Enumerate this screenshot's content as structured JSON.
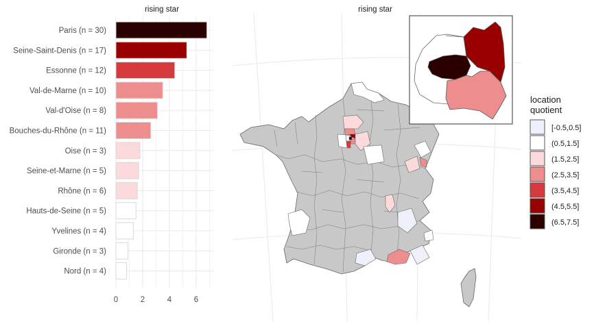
{
  "bar_panel": {
    "title": "rising star",
    "x_ticks": [
      "0",
      "2",
      "4",
      "6"
    ]
  },
  "map_panel": {
    "title": "rising star"
  },
  "legend": {
    "title_line1": "location",
    "title_line2": "quotient",
    "items": [
      {
        "label": "[-0.5,0.5]",
        "color": "#eef0fb"
      },
      {
        "label": "(0.5,1.5]",
        "color": "#ffffff"
      },
      {
        "label": "(1.5,2.5]",
        "color": "#fcd9da"
      },
      {
        "label": "(2.5,3.5]",
        "color": "#ee8d8e"
      },
      {
        "label": "(3.5,4.5]",
        "color": "#d63a3c"
      },
      {
        "label": "(4.5,5.5]",
        "color": "#990000"
      },
      {
        "label": "(6.5,7.5]",
        "color": "#2a0000"
      }
    ]
  },
  "chart_data": [
    {
      "type": "bar",
      "orientation": "horizontal",
      "title": "rising star",
      "xlim": [
        0,
        7
      ],
      "categories": [
        "Paris (n = 30)",
        "Seine-Saint-Denis (n = 17)",
        "Essonne (n = 12)",
        "Val-de-Marne (n = 10)",
        "Val-d'Oise (n = 8)",
        "Bouches-du-Rhône (n = 11)",
        "Oise (n = 3)",
        "Seine-et-Marne (n = 5)",
        "Rhône (n = 6)",
        "Hauts-de-Seine (n = 5)",
        "Yvelines (n = 4)",
        "Gironde (n = 3)",
        "Nord (n = 4)"
      ],
      "values": [
        6.8,
        5.3,
        4.4,
        3.5,
        3.1,
        2.6,
        1.8,
        1.7,
        1.6,
        1.5,
        1.3,
        0.9,
        0.8
      ],
      "colors": [
        "#2a0000",
        "#990000",
        "#d63a3c",
        "#ee8d8e",
        "#ee8d8e",
        "#ee8d8e",
        "#fcd9da",
        "#fcd9da",
        "#fcd9da",
        "#ffffff",
        "#ffffff",
        "#ffffff",
        "#ffffff"
      ]
    },
    {
      "type": "choropleth map",
      "title": "rising star",
      "fill_variable": "location quotient",
      "highlighted_regions": [
        {
          "name": "Paris",
          "class": "(6.5,7.5]"
        },
        {
          "name": "Seine-Saint-Denis",
          "class": "(4.5,5.5]"
        },
        {
          "name": "Essonne",
          "class": "(3.5,4.5]"
        },
        {
          "name": "Val-de-Marne",
          "class": "(2.5,3.5]"
        },
        {
          "name": "Val-d'Oise",
          "class": "(2.5,3.5]"
        },
        {
          "name": "Bouches-du-Rhône",
          "class": "(2.5,3.5]"
        },
        {
          "name": "Oise",
          "class": "(1.5,2.5]"
        },
        {
          "name": "Seine-et-Marne",
          "class": "(1.5,2.5]"
        },
        {
          "name": "Rhône",
          "class": "(1.5,2.5]"
        },
        {
          "name": "Hauts-de-Seine",
          "class": "(0.5,1.5]"
        },
        {
          "name": "Yvelines",
          "class": "(0.5,1.5]"
        },
        {
          "name": "Gironde",
          "class": "(0.5,1.5]"
        },
        {
          "name": "Nord",
          "class": "(0.5,1.5]"
        }
      ]
    }
  ]
}
